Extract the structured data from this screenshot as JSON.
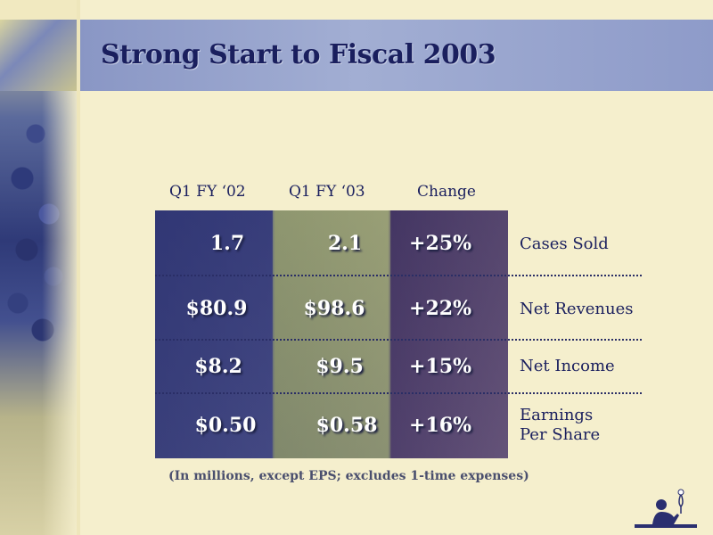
{
  "slide": {
    "title": "Strong Start to Fiscal 2003",
    "columns": [
      "Q1 FY ‘02",
      "Q1 FY ‘03",
      "Change"
    ],
    "rows": [
      {
        "values": [
          "1.7",
          "2.1",
          "+25%"
        ],
        "label": "Cases Sold"
      },
      {
        "values": [
          "$80.9",
          "$98.6",
          "+22%"
        ],
        "label": "Net Revenues"
      },
      {
        "values": [
          "$8.2",
          "$9.5",
          "+15%"
        ],
        "label": "Net Income"
      },
      {
        "values": [
          "$0.50",
          "$0.58",
          "+16%"
        ],
        "label": "Earnings\nPer Share"
      }
    ],
    "footnote": "(In millions, except EPS; excludes 1-time expenses)"
  },
  "colors": {
    "title": "#1a1f5e",
    "background": "#f5efcd",
    "band": "#a2aed3"
  },
  "icons": {
    "logo": "person-with-wine-glass-logo"
  }
}
